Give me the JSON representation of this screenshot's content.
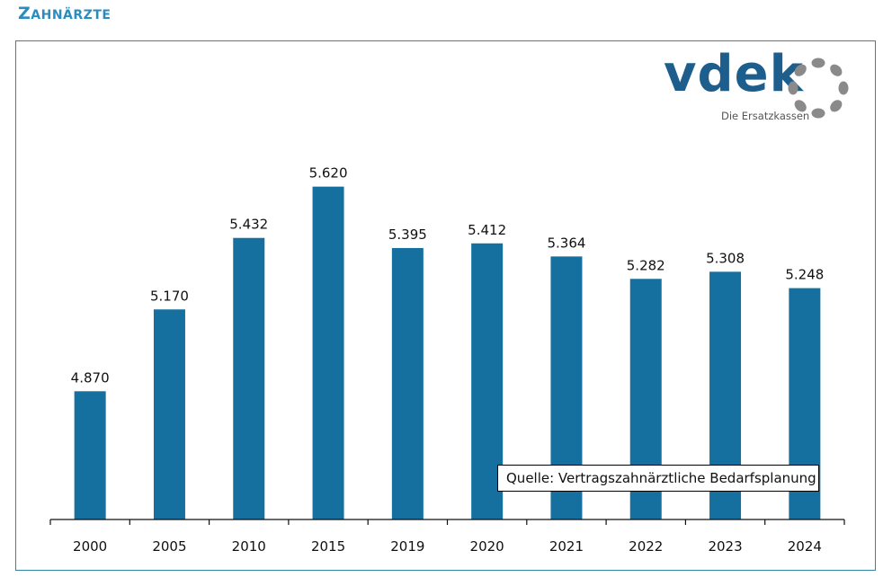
{
  "header": {
    "title": "Zahnärzte"
  },
  "logo": {
    "wordmark": "vdek",
    "tagline": "Die Ersatzkassen",
    "icon": "dotted-circle-logo-icon"
  },
  "colors": {
    "bar": "#16709f",
    "title": "#2a8cbf",
    "frame": "#2f86a8",
    "logo_text": "#1d5e8c",
    "logo_dots": "#8a8a8a"
  },
  "source_note": "Quelle: Vertragszahnärztliche Bedarfsplanung",
  "chart_data": {
    "type": "bar",
    "title": "Zahnärzte",
    "xlabel": "",
    "ylabel": "",
    "categories": [
      "2000",
      "2005",
      "2010",
      "2015",
      "2019",
      "2020",
      "2021",
      "2022",
      "2023",
      "2024"
    ],
    "values": [
      4870,
      5170,
      5432,
      5620,
      5395,
      5412,
      5364,
      5282,
      5308,
      5248
    ],
    "labels": [
      "4.870",
      "5.170",
      "5.432",
      "5.620",
      "5.395",
      "5.412",
      "5.364",
      "5.282",
      "5.308",
      "5.248"
    ],
    "ylim": [
      4400,
      5800
    ],
    "grid": false,
    "legend": "none",
    "annotation": "Quelle: Vertragszahnärztliche Bedarfsplanung"
  }
}
